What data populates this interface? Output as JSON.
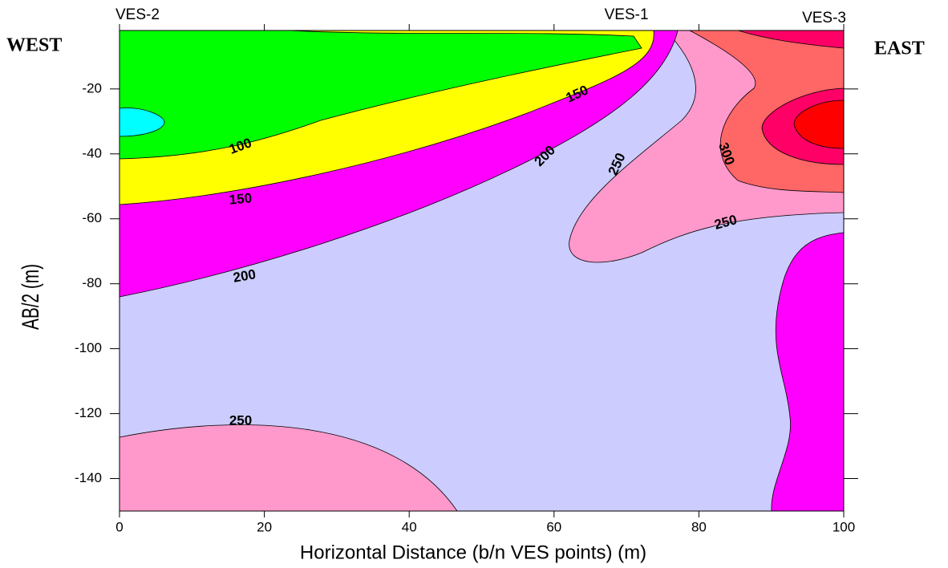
{
  "chart_data": {
    "type": "contour",
    "xlabel": "Horizontal Distance (b/n VES points) (m)",
    "ylabel": "AB/2 (m)",
    "xlim": [
      0,
      100
    ],
    "xticks": [
      0,
      20,
      40,
      60,
      80,
      100
    ],
    "ylim": [
      -150,
      -2
    ],
    "yticks": [
      -20,
      -40,
      -60,
      -80,
      -100,
      -120,
      -140
    ],
    "ves_points": {
      "x": [
        0,
        70,
        100
      ],
      "labels": [
        "VES-2",
        "VES-1",
        "VES-3"
      ]
    },
    "annotations": [
      "WEST",
      "EAST"
    ],
    "contour_labels": [
      100,
      150,
      150,
      200,
      200,
      250,
      250,
      250,
      300
    ]
  }
}
